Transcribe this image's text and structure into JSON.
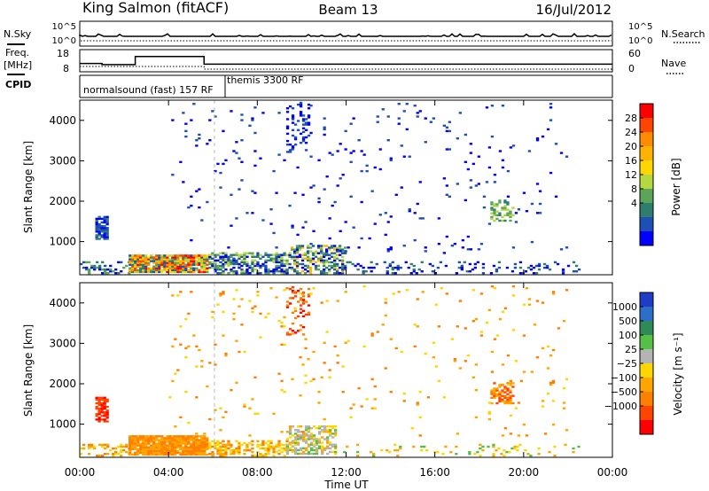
{
  "header": {
    "station": "King Salmon (fitACF)",
    "beam": "Beam 13",
    "date": "16/Jul/2012"
  },
  "status_panels": {
    "nsky": {
      "label": "N.Sky",
      "tick_labels": [
        "10^5",
        "10^0"
      ]
    },
    "nsearch": {
      "label": "N.Search",
      "tick_labels": [
        "10^5",
        "10^0"
      ]
    },
    "freq": {
      "label_line1": "Freq.",
      "label_line2": "[MHz]",
      "tick_labels": [
        "18",
        "8"
      ],
      "steps": [
        {
          "start_h": 0.0,
          "end_h": 1.0,
          "mhz": 12.0
        },
        {
          "start_h": 1.0,
          "end_h": 2.5,
          "mhz": 11.4
        },
        {
          "start_h": 2.5,
          "end_h": 5.6,
          "mhz": 15.7
        },
        {
          "start_h": 5.6,
          "end_h": 24.0,
          "mhz": 11.6
        }
      ]
    },
    "nave": {
      "label": "Nave",
      "tick_labels": [
        "60",
        "0"
      ]
    },
    "cpid": {
      "label": "CPID",
      "programs": [
        "normalsound (fast) 157 RF",
        "themis 3300 RF"
      ]
    }
  },
  "chart_data": [
    {
      "type": "heatmap",
      "name": "power",
      "ylabel": "Slant Range [km]",
      "xlabel": "",
      "x_ticks": [
        "00:00",
        "04:00",
        "08:00",
        "12:00",
        "16:00",
        "20:00",
        "00:00"
      ],
      "xlim_hours": [
        0,
        24
      ],
      "y_ticks": [
        1000,
        2000,
        3000,
        4000
      ],
      "ylim": [
        180,
        4500
      ],
      "colorbar": {
        "label": "Power [dB]",
        "tick_labels": [
          "28",
          "24",
          "20",
          "16",
          "12",
          "8",
          "4"
        ],
        "colors": [
          "#ff0000",
          "#ff4500",
          "#ff8c00",
          "#ffb300",
          "#ffd700",
          "#b5d840",
          "#5aa55a",
          "#2e7d6f",
          "#1e4fb5",
          "#0000ff"
        ]
      },
      "regions": [
        {
          "t0": 0.7,
          "t1": 1.3,
          "r0": 1050,
          "r1": 1600,
          "fill": 0.75,
          "levels": [
            7,
            8,
            9
          ]
        },
        {
          "t0": 0.0,
          "t1": 2.2,
          "r0": 200,
          "r1": 500,
          "fill": 0.35,
          "levels": [
            6,
            7,
            8,
            9
          ]
        },
        {
          "t0": 2.2,
          "t1": 5.8,
          "r0": 230,
          "r1": 650,
          "fill": 0.92,
          "levels": [
            0,
            1,
            2,
            3,
            4,
            5,
            6,
            7,
            8
          ]
        },
        {
          "t0": 5.8,
          "t1": 9.5,
          "r0": 200,
          "r1": 700,
          "fill": 0.6,
          "levels": [
            5,
            6,
            7,
            8,
            9
          ]
        },
        {
          "t0": 9.5,
          "t1": 12.0,
          "r0": 200,
          "r1": 900,
          "fill": 0.55,
          "levels": [
            3,
            5,
            6,
            7,
            8,
            9
          ]
        },
        {
          "t0": 12.0,
          "t1": 22.5,
          "r0": 200,
          "r1": 500,
          "fill": 0.18,
          "levels": [
            7,
            8,
            9
          ]
        },
        {
          "t0": 9.3,
          "t1": 10.3,
          "r0": 3200,
          "r1": 4450,
          "fill": 0.2,
          "levels": [
            8,
            9
          ]
        },
        {
          "t0": 18.5,
          "t1": 19.5,
          "r0": 1500,
          "r1": 2000,
          "fill": 0.45,
          "levels": [
            5,
            6,
            7
          ]
        },
        {
          "t0": 4.0,
          "t1": 22.0,
          "r0": 700,
          "r1": 4400,
          "fill": 0.02,
          "levels": [
            8,
            9
          ]
        }
      ]
    },
    {
      "type": "heatmap",
      "name": "velocity",
      "ylabel": "Slant Range [km]",
      "xlabel": "Time UT",
      "x_ticks": [
        "00:00",
        "04:00",
        "08:00",
        "12:00",
        "16:00",
        "20:00",
        "00:00"
      ],
      "xlim_hours": [
        0,
        24
      ],
      "y_ticks": [
        1000,
        2000,
        3000,
        4000
      ],
      "ylim": [
        180,
        4500
      ],
      "colorbar": {
        "label": "Velocity [m s⁻¹]",
        "tick_labels": [
          "1000",
          "500",
          "100",
          "25",
          "−25",
          "−100",
          "−500",
          "−1000"
        ],
        "colors": [
          "#1e3cc8",
          "#2d6ec8",
          "#2e8b57",
          "#55c045",
          "#b4b4b4",
          "#ffd700",
          "#ffa500",
          "#ff7f00",
          "#ff4500",
          "#ff0000"
        ]
      },
      "regions": [
        {
          "t0": 0.7,
          "t1": 1.3,
          "r0": 1050,
          "r1": 1650,
          "fill": 0.75,
          "levels": [
            8,
            9
          ]
        },
        {
          "t0": 0.0,
          "t1": 2.2,
          "r0": 200,
          "r1": 500,
          "fill": 0.3,
          "levels": [
            5,
            6,
            7
          ]
        },
        {
          "t0": 2.2,
          "t1": 5.8,
          "r0": 230,
          "r1": 700,
          "fill": 0.92,
          "levels": [
            6,
            7
          ]
        },
        {
          "t0": 5.8,
          "t1": 9.3,
          "r0": 200,
          "r1": 600,
          "fill": 0.45,
          "levels": [
            5,
            6,
            7
          ]
        },
        {
          "t0": 9.3,
          "t1": 11.5,
          "r0": 250,
          "r1": 950,
          "fill": 0.55,
          "levels": [
            3,
            4,
            4,
            5,
            6
          ]
        },
        {
          "t0": 11.5,
          "t1": 22.5,
          "r0": 200,
          "r1": 500,
          "fill": 0.12,
          "levels": [
            3,
            5,
            6
          ]
        },
        {
          "t0": 9.3,
          "t1": 10.3,
          "r0": 3200,
          "r1": 4450,
          "fill": 0.2,
          "levels": [
            7,
            8,
            9
          ]
        },
        {
          "t0": 18.5,
          "t1": 19.5,
          "r0": 1500,
          "r1": 2000,
          "fill": 0.45,
          "levels": [
            6,
            7,
            8
          ]
        },
        {
          "t0": 4.0,
          "t1": 22.0,
          "r0": 700,
          "r1": 4400,
          "fill": 0.02,
          "levels": [
            5,
            6,
            7
          ]
        }
      ]
    }
  ]
}
